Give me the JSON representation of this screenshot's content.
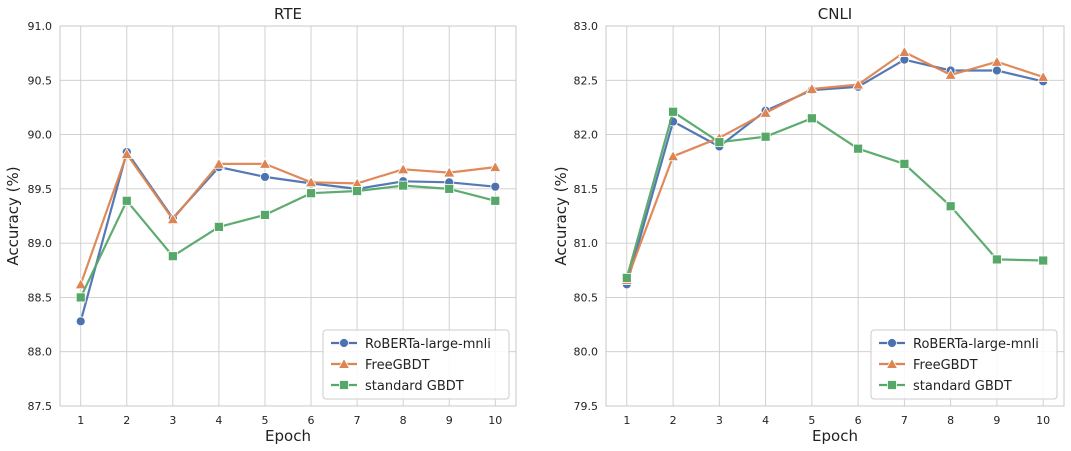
{
  "colors": {
    "roberta": "#4c72b0",
    "freegbdt": "#dd8452",
    "standard": "#55a868",
    "grid": "#cccccc",
    "frame": "#c8c8c8"
  },
  "chart_data": [
    {
      "type": "line",
      "title": "RTE",
      "xlabel": "Epoch",
      "ylabel": "Accuracy (%)",
      "x": [
        1,
        2,
        3,
        4,
        5,
        6,
        7,
        8,
        9,
        10
      ],
      "xticks": [
        "1",
        "2",
        "3",
        "4",
        "5",
        "6",
        "7",
        "8",
        "9",
        "10"
      ],
      "ylim": [
        87.5,
        91.0
      ],
      "yticks": [
        "87.5",
        "88.0",
        "88.5",
        "89.0",
        "89.5",
        "90.0",
        "90.5",
        "91.0"
      ],
      "legend_position": "bottom-right",
      "grid": true,
      "series": [
        {
          "name": "RoBERTa-large-mnli",
          "color": "#4c72b0",
          "marker": "circle",
          "values": [
            88.28,
            89.84,
            89.23,
            89.7,
            89.61,
            89.55,
            89.5,
            89.57,
            89.56,
            89.52
          ]
        },
        {
          "name": "FreeGBDT",
          "color": "#dd8452",
          "marker": "triangle",
          "values": [
            88.62,
            89.82,
            89.22,
            89.73,
            89.73,
            89.56,
            89.55,
            89.68,
            89.65,
            89.7
          ]
        },
        {
          "name": "standard GBDT",
          "color": "#55a868",
          "marker": "square",
          "values": [
            88.5,
            89.39,
            88.88,
            89.15,
            89.26,
            89.46,
            89.48,
            89.53,
            89.5,
            89.39
          ]
        }
      ]
    },
    {
      "type": "line",
      "title": "CNLI",
      "xlabel": "Epoch",
      "ylabel": "Accuracy (%)",
      "x": [
        1,
        2,
        3,
        4,
        5,
        6,
        7,
        8,
        9,
        10
      ],
      "xticks": [
        "1",
        "2",
        "3",
        "4",
        "5",
        "6",
        "7",
        "8",
        "9",
        "10"
      ],
      "ylim": [
        79.5,
        83.0
      ],
      "yticks": [
        "79.5",
        "80.0",
        "80.5",
        "81.0",
        "81.5",
        "82.0",
        "82.5",
        "83.0"
      ],
      "legend_position": "bottom-right",
      "grid": true,
      "series": [
        {
          "name": "RoBERTa-large-mnli",
          "color": "#4c72b0",
          "marker": "circle",
          "values": [
            80.62,
            82.12,
            81.89,
            82.22,
            82.41,
            82.44,
            82.69,
            82.59,
            82.59,
            82.49
          ]
        },
        {
          "name": "FreeGBDT",
          "color": "#dd8452",
          "marker": "triangle",
          "values": [
            80.66,
            81.8,
            81.97,
            82.2,
            82.42,
            82.46,
            82.76,
            82.55,
            82.67,
            82.53
          ]
        },
        {
          "name": "standard GBDT",
          "color": "#55a868",
          "marker": "square",
          "values": [
            80.68,
            82.21,
            81.93,
            81.98,
            82.15,
            81.87,
            81.73,
            81.34,
            80.85,
            80.84
          ]
        }
      ]
    }
  ]
}
